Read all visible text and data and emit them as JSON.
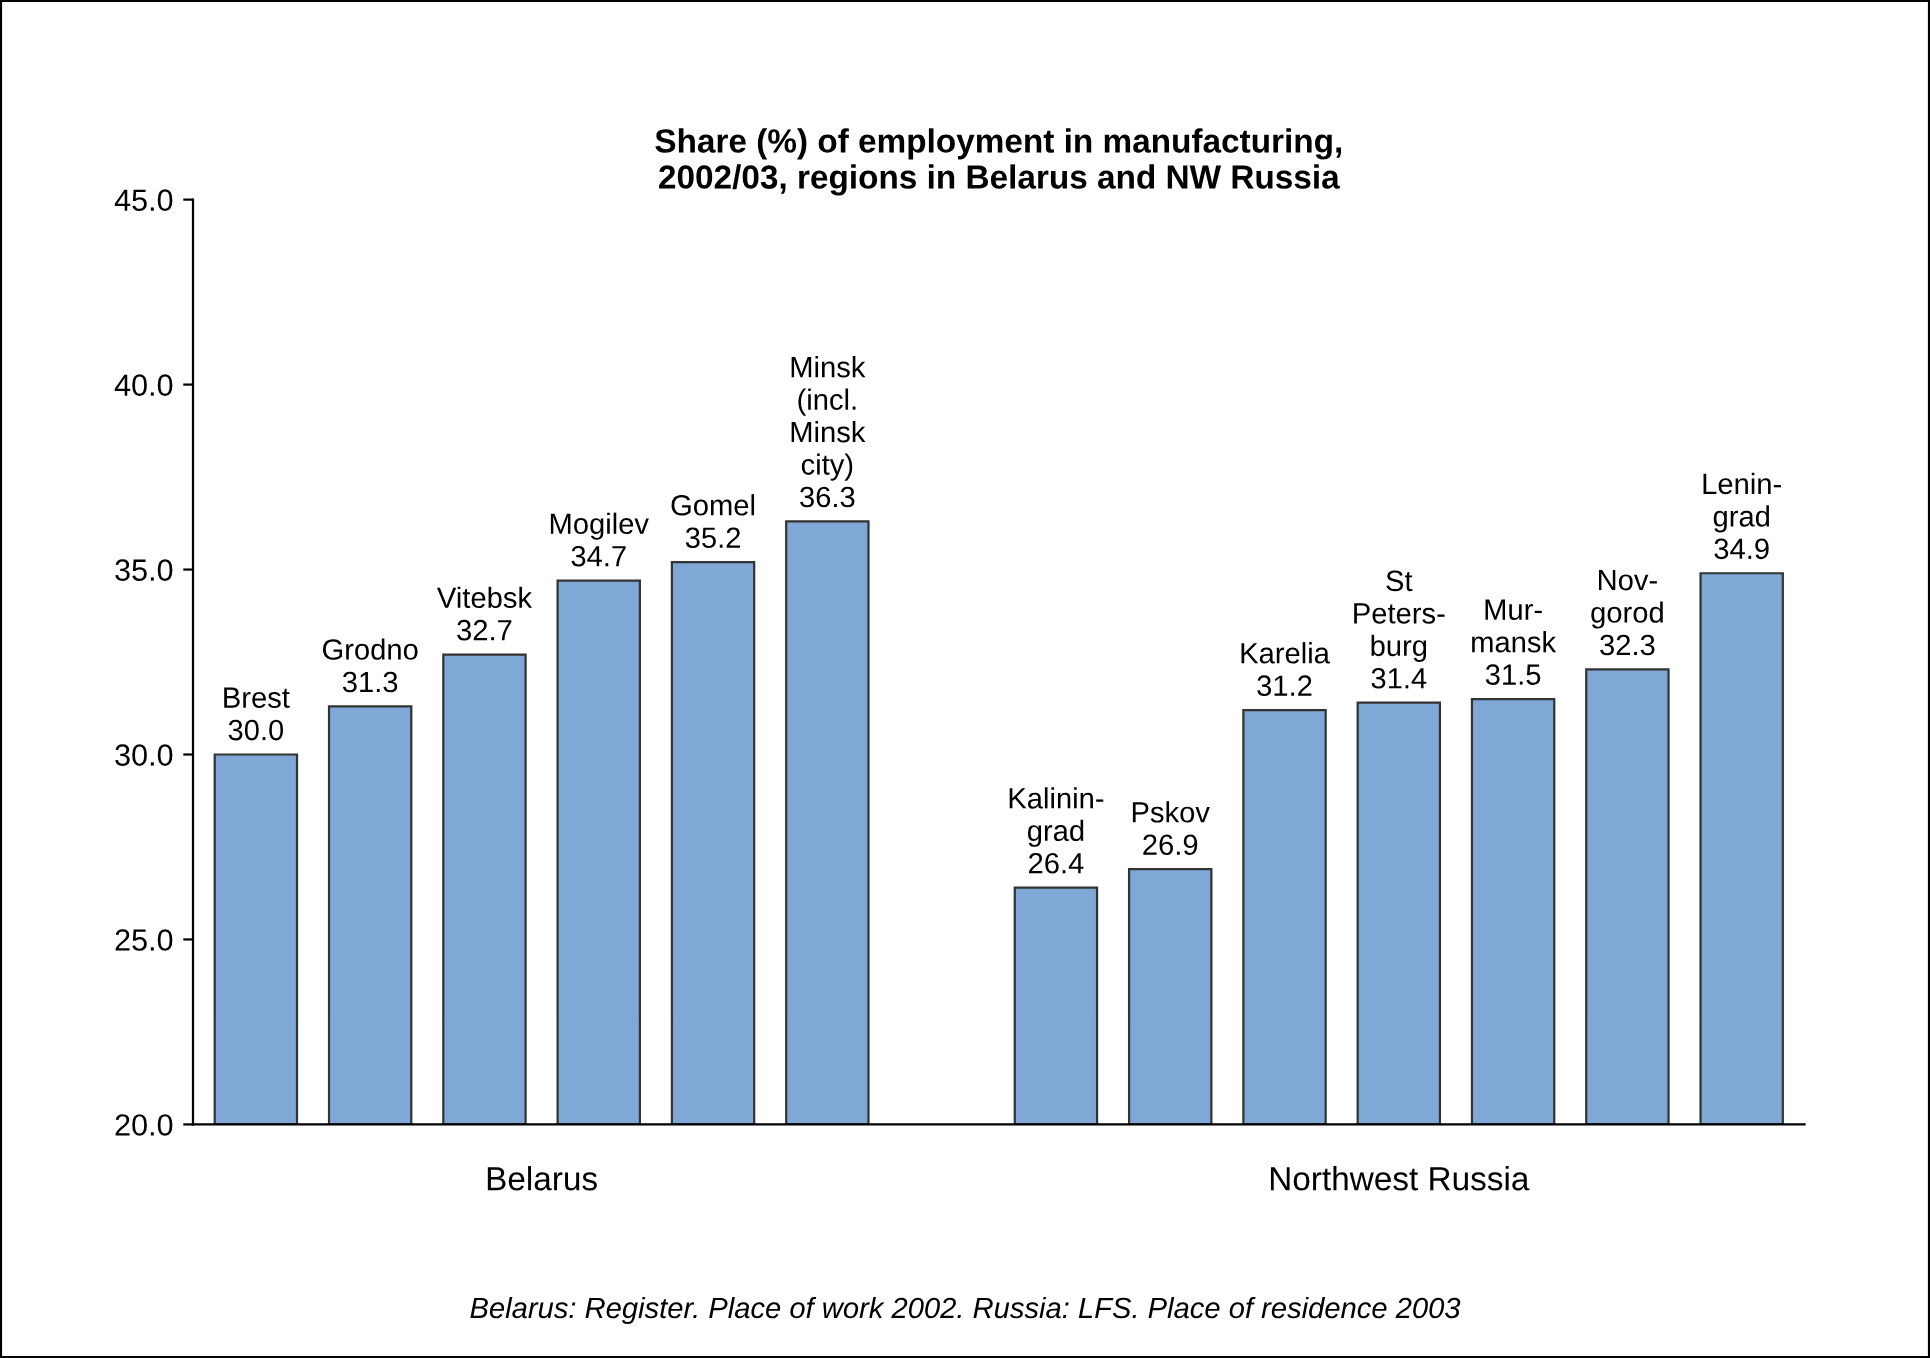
{
  "chart_data": {
    "type": "bar",
    "title": "Share (%) of employment in manufacturing,\n2002/03, regions in Belarus and NW Russia",
    "categories": [
      "Brest",
      "Grodno",
      "Vitebsk",
      "Mogilev",
      "Gomel",
      "Minsk\n(incl.\nMinsk\ncity)",
      null,
      "Kalinin-\ngrad",
      "Pskov",
      "Karelia",
      "St\nPeters-\nburg",
      "Mur-\nmansk",
      "Nov-\ngorod",
      "Lenin-\ngrad"
    ],
    "values": [
      30.0,
      31.3,
      32.7,
      34.7,
      35.2,
      36.3,
      null,
      26.4,
      26.9,
      31.2,
      31.4,
      31.5,
      32.3,
      34.9
    ],
    "value_labels": [
      "30.0",
      "31.3",
      "32.7",
      "34.7",
      "35.2",
      "36.3",
      null,
      "26.4",
      "26.9",
      "31.2",
      "31.4",
      "31.5",
      "32.3",
      "34.9"
    ],
    "color": "#7fa8d6",
    "ylim": [
      20,
      45
    ],
    "yticks": [
      {
        "value": 20,
        "label": "20.0"
      },
      {
        "value": 25,
        "label": "25.0"
      },
      {
        "value": 30,
        "label": "30.0"
      },
      {
        "value": 35,
        "label": "35.0"
      },
      {
        "value": 40,
        "label": "40.0"
      },
      {
        "value": 45,
        "label": "45.0"
      }
    ],
    "grid": false,
    "legend": false,
    "annotations": [
      "Belarus",
      "Northwest Russia",
      "Belarus: Register. Place of work 2002. Russia: LFS. Place of residence 2003"
    ]
  }
}
